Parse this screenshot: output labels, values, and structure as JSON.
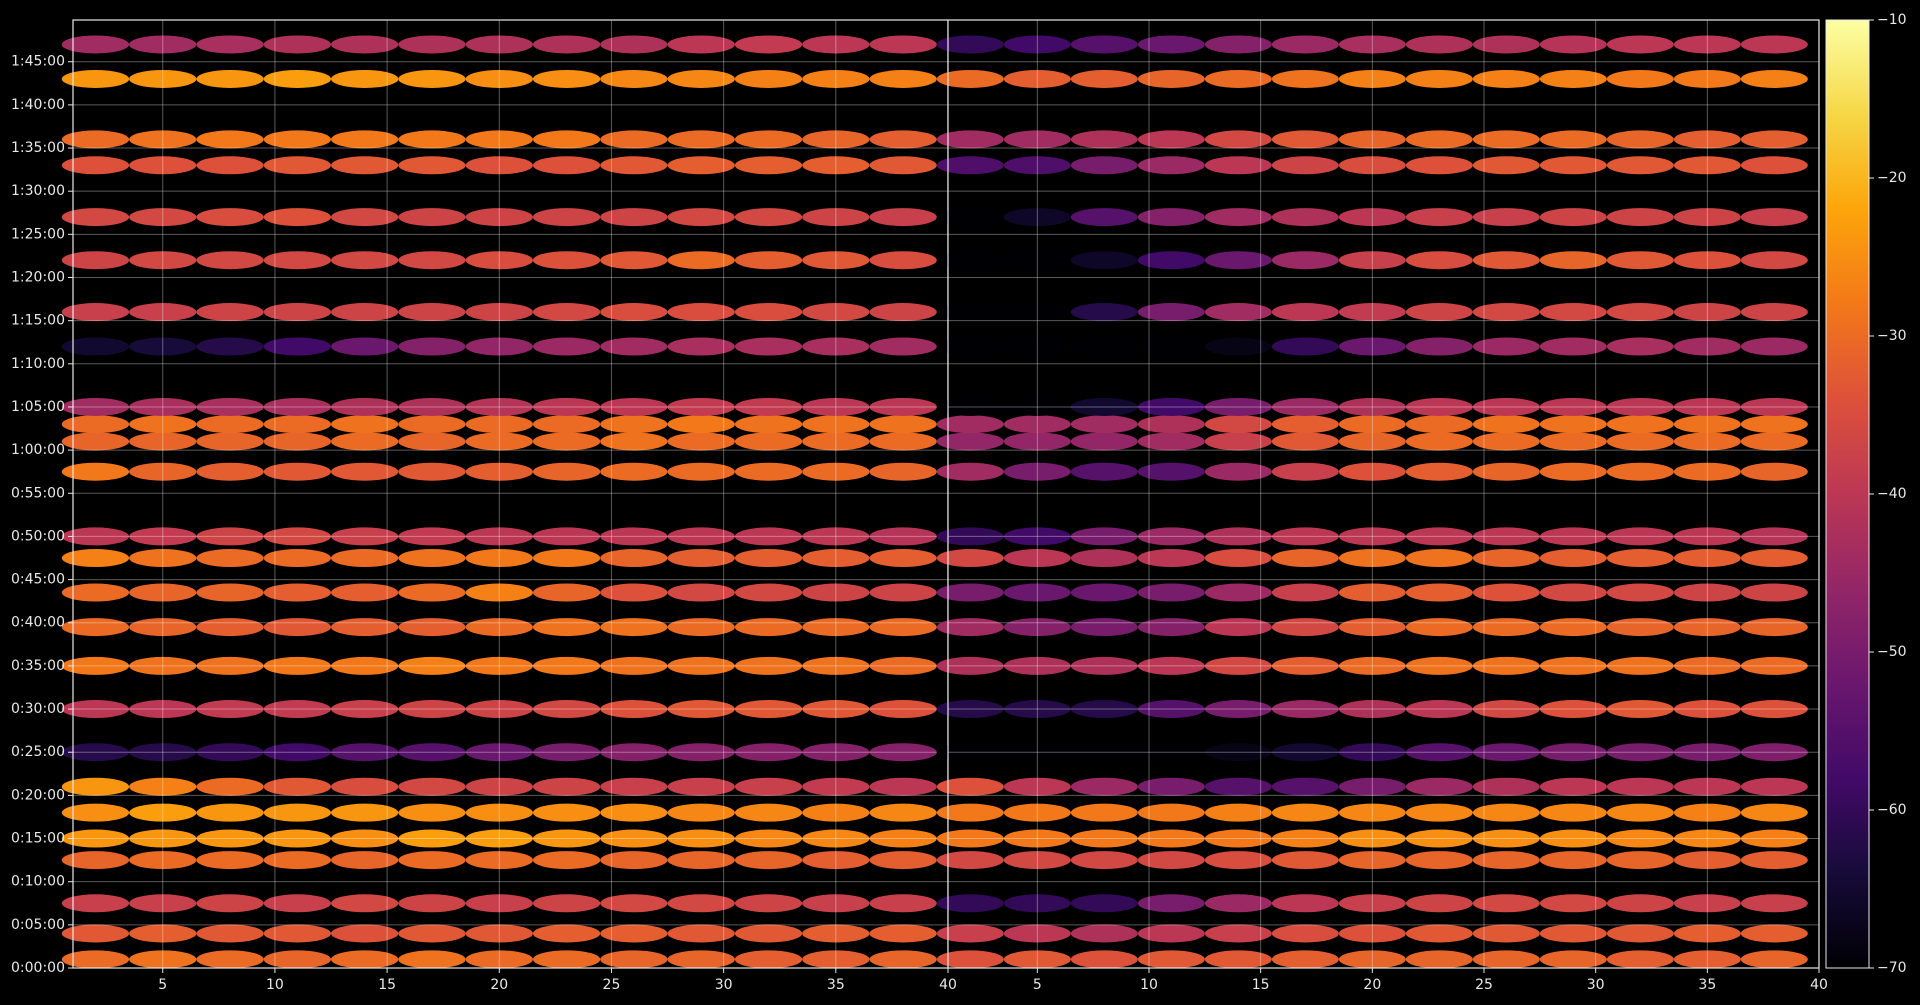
{
  "chart_data": {
    "type": "heatmap",
    "colormap": "inferno",
    "background": "#000000",
    "grid": true,
    "x": [
      2,
      5,
      8,
      11,
      14,
      17,
      20,
      23,
      26,
      29,
      32,
      35,
      38
    ],
    "y": [
      60,
      240,
      450,
      750,
      900,
      1080,
      1260,
      1500,
      1800,
      2100,
      2370,
      2610,
      2850,
      3000,
      3450,
      3660,
      3780,
      3900,
      4320,
      4560,
      4920,
      5220,
      5580,
      5760,
      6180,
      6420
    ],
    "xlim": [
      1,
      40
    ],
    "xticks": [
      5,
      10,
      15,
      20,
      25,
      30,
      35,
      40
    ],
    "ylim": [
      0,
      6590
    ],
    "yticks": [
      {
        "value": 0,
        "label": "0:00:00"
      },
      {
        "value": 300,
        "label": "0:05:00"
      },
      {
        "value": 600,
        "label": "0:10:00"
      },
      {
        "value": 900,
        "label": "0:15:00"
      },
      {
        "value": 1200,
        "label": "0:20:00"
      },
      {
        "value": 1500,
        "label": "0:25:00"
      },
      {
        "value": 1800,
        "label": "0:30:00"
      },
      {
        "value": 2100,
        "label": "0:35:00"
      },
      {
        "value": 2400,
        "label": "0:40:00"
      },
      {
        "value": 2700,
        "label": "0:45:00"
      },
      {
        "value": 3000,
        "label": "0:50:00"
      },
      {
        "value": 3300,
        "label": "0:55:00"
      },
      {
        "value": 3600,
        "label": "1:00:00"
      },
      {
        "value": 3900,
        "label": "1:05:00"
      },
      {
        "value": 4200,
        "label": "1:10:00"
      },
      {
        "value": 4500,
        "label": "1:15:00"
      },
      {
        "value": 4800,
        "label": "1:20:00"
      },
      {
        "value": 5100,
        "label": "1:25:00"
      },
      {
        "value": 5400,
        "label": "1:30:00"
      },
      {
        "value": 5700,
        "label": "1:35:00"
      },
      {
        "value": 6000,
        "label": "1:40:00"
      },
      {
        "value": 6300,
        "label": "1:45:00"
      }
    ],
    "zlim": [
      -70,
      -10
    ],
    "zticks": [
      {
        "value": -70,
        "label": "−70"
      },
      {
        "value": -60,
        "label": "−60"
      },
      {
        "value": -50,
        "label": "−50"
      },
      {
        "value": -40,
        "label": "−40"
      },
      {
        "value": -30,
        "label": "−30"
      },
      {
        "value": -20,
        "label": "−20"
      },
      {
        "value": -10,
        "label": "−10"
      }
    ],
    "panels": [
      {
        "values": [
          [
            -30,
            -29,
            -30,
            -31,
            -30,
            -29,
            -30,
            -30,
            -31,
            -31,
            -32,
            -32,
            -31
          ],
          [
            -33,
            -32,
            -33,
            -33,
            -34,
            -33,
            -33,
            -32,
            -32,
            -33,
            -33,
            -32,
            -32
          ],
          [
            -38,
            -38,
            -37,
            -38,
            -36,
            -37,
            -38,
            -37,
            -36,
            -36,
            -37,
            -38,
            -38
          ],
          [
            -31,
            -30,
            -30,
            -30,
            -31,
            -30,
            -30,
            -30,
            -31,
            -31,
            -31,
            -32,
            -32
          ],
          [
            -24,
            -24,
            -24,
            -24,
            -25,
            -23,
            -23,
            -24,
            -25,
            -25,
            -26,
            -26,
            -27
          ],
          [
            -25,
            -23,
            -24,
            -24,
            -24,
            -25,
            -25,
            -25,
            -25,
            -26,
            -26,
            -27,
            -26
          ],
          [
            -24,
            -27,
            -30,
            -33,
            -35,
            -36,
            -37,
            -37,
            -38,
            -38,
            -38,
            -39,
            -40
          ],
          [
            -62,
            -62,
            -60,
            -58,
            -55,
            -55,
            -52,
            -50,
            -48,
            -48,
            -48,
            -48,
            -48
          ],
          [
            -40,
            -40,
            -39,
            -39,
            -38,
            -37,
            -37,
            -36,
            -34,
            -33,
            -33,
            -33,
            -34
          ],
          [
            -28,
            -29,
            -29,
            -28,
            -28,
            -27,
            -28,
            -28,
            -29,
            -29,
            -29,
            -29,
            -30
          ],
          [
            -30,
            -31,
            -32,
            -33,
            -32,
            -32,
            -30,
            -29,
            -29,
            -30,
            -30,
            -30,
            -30
          ],
          [
            -30,
            -31,
            -31,
            -32,
            -32,
            -30,
            -27,
            -31,
            -34,
            -36,
            -36,
            -37,
            -37
          ],
          [
            -27,
            -29,
            -30,
            -30,
            -30,
            -29,
            -28,
            -28,
            -31,
            -32,
            -32,
            -32,
            -32
          ],
          [
            -40,
            -39,
            -37,
            -36,
            -38,
            -39,
            -40,
            -40,
            -40,
            -40,
            -40,
            -40,
            -41
          ],
          [
            -28,
            -31,
            -32,
            -33,
            -33,
            -33,
            -32,
            -31,
            -30,
            -30,
            -30,
            -30,
            -31
          ],
          [
            -31,
            -31,
            -31,
            -31,
            -30,
            -31,
            -30,
            -30,
            -29,
            -30,
            -30,
            -30,
            -30
          ],
          [
            -30,
            -29,
            -30,
            -30,
            -29,
            -30,
            -30,
            -30,
            -29,
            -28,
            -29,
            -29,
            -29
          ],
          [
            -44,
            -43,
            -43,
            -43,
            -42,
            -42,
            -41,
            -40,
            -40,
            -39,
            -39,
            -40,
            -40
          ],
          [
            -65,
            -64,
            -62,
            -58,
            -52,
            -48,
            -46,
            -45,
            -44,
            -43,
            -43,
            -43,
            -44
          ],
          [
            -38,
            -38,
            -37,
            -37,
            -37,
            -37,
            -37,
            -36,
            -35,
            -35,
            -35,
            -36,
            -37
          ],
          [
            -37,
            -36,
            -36,
            -36,
            -36,
            -36,
            -35,
            -34,
            -33,
            -30,
            -32,
            -33,
            -35
          ],
          [
            -36,
            -36,
            -35,
            -34,
            -36,
            -37,
            -37,
            -37,
            -37,
            -36,
            -36,
            -37,
            -38
          ],
          [
            -34,
            -34,
            -34,
            -33,
            -33,
            -33,
            -34,
            -34,
            -33,
            -32,
            -32,
            -32,
            -33
          ],
          [
            -30,
            -29,
            -28,
            -28,
            -28,
            -28,
            -28,
            -28,
            -30,
            -30,
            -30,
            -31,
            -32
          ],
          [
            -24,
            -24,
            -24,
            -23,
            -24,
            -24,
            -25,
            -25,
            -26,
            -26,
            -27,
            -27,
            -27
          ],
          [
            -44,
            -44,
            -43,
            -42,
            -42,
            -42,
            -42,
            -42,
            -42,
            -40,
            -39,
            -40,
            -40
          ]
        ]
      },
      {
        "values": [
          [
            -34,
            -33,
            -34,
            -33,
            -33,
            -32,
            -31,
            -31,
            -31,
            -31,
            -32,
            -32,
            -31
          ],
          [
            -38,
            -40,
            -42,
            -40,
            -38,
            -35,
            -34,
            -33,
            -33,
            -33,
            -33,
            -32,
            -32
          ],
          [
            -60,
            -60,
            -60,
            -50,
            -45,
            -40,
            -38,
            -37,
            -36,
            -36,
            -37,
            -38,
            -38
          ],
          [
            -36,
            -36,
            -36,
            -36,
            -35,
            -33,
            -31,
            -31,
            -31,
            -31,
            -31,
            -32,
            -32
          ],
          [
            -28,
            -28,
            -28,
            -28,
            -28,
            -27,
            -25,
            -25,
            -25,
            -25,
            -26,
            -26,
            -27
          ],
          [
            -28,
            -28,
            -28,
            -28,
            -27,
            -26,
            -26,
            -26,
            -26,
            -26,
            -26,
            -27,
            -26
          ],
          [
            -34,
            -40,
            -45,
            -50,
            -55,
            -55,
            -50,
            -45,
            -42,
            -40,
            -40,
            -40,
            -40
          ],
          [
            -70,
            -70,
            -70,
            -70,
            -68,
            -65,
            -60,
            -55,
            -52,
            -50,
            -50,
            -50,
            -49
          ],
          [
            -62,
            -62,
            -62,
            -55,
            -50,
            -45,
            -42,
            -40,
            -36,
            -34,
            -33,
            -34,
            -34
          ],
          [
            -42,
            -42,
            -42,
            -40,
            -36,
            -32,
            -30,
            -29,
            -29,
            -29,
            -29,
            -30,
            -30
          ],
          [
            -44,
            -48,
            -50,
            -48,
            -40,
            -36,
            -32,
            -30,
            -30,
            -30,
            -31,
            -31,
            -31
          ],
          [
            -50,
            -52,
            -52,
            -50,
            -45,
            -38,
            -32,
            -32,
            -34,
            -36,
            -36,
            -37,
            -37
          ],
          [
            -36,
            -40,
            -42,
            -40,
            -35,
            -31,
            -29,
            -29,
            -31,
            -32,
            -32,
            -32,
            -32
          ],
          [
            -60,
            -58,
            -50,
            -45,
            -42,
            -40,
            -40,
            -40,
            -40,
            -40,
            -40,
            -40,
            -41
          ],
          [
            -44,
            -50,
            -55,
            -55,
            -45,
            -38,
            -34,
            -32,
            -31,
            -30,
            -30,
            -30,
            -31
          ],
          [
            -46,
            -46,
            -46,
            -44,
            -38,
            -33,
            -31,
            -30,
            -30,
            -30,
            -30,
            -30,
            -30
          ],
          [
            -44,
            -44,
            -44,
            -42,
            -36,
            -32,
            -30,
            -30,
            -29,
            -29,
            -29,
            -29,
            -29
          ],
          [
            -70,
            -70,
            -65,
            -58,
            -50,
            -45,
            -42,
            -40,
            -40,
            -40,
            -40,
            -40,
            -40
          ],
          [
            -70,
            -70,
            -70,
            -70,
            -68,
            -60,
            -52,
            -48,
            -45,
            -44,
            -43,
            -44,
            -45
          ],
          [
            -70,
            -70,
            -62,
            -50,
            -44,
            -40,
            -39,
            -37,
            -36,
            -36,
            -36,
            -37,
            -37
          ],
          [
            -70,
            -70,
            -66,
            -58,
            -52,
            -45,
            -38,
            -35,
            -33,
            -31,
            -33,
            -34,
            -36
          ],
          [
            -70,
            -66,
            -55,
            -48,
            -44,
            -42,
            -40,
            -38,
            -38,
            -37,
            -37,
            -37,
            -38
          ],
          [
            -56,
            -56,
            -50,
            -45,
            -40,
            -37,
            -35,
            -34,
            -33,
            -33,
            -33,
            -33,
            -34
          ],
          [
            -44,
            -44,
            -42,
            -40,
            -36,
            -33,
            -31,
            -30,
            -30,
            -30,
            -31,
            -32,
            -32
          ],
          [
            -30,
            -32,
            -32,
            -31,
            -30,
            -29,
            -27,
            -27,
            -27,
            -27,
            -28,
            -28,
            -27
          ],
          [
            -60,
            -58,
            -55,
            -52,
            -48,
            -45,
            -43,
            -42,
            -42,
            -41,
            -40,
            -40,
            -40
          ]
        ]
      }
    ]
  }
}
